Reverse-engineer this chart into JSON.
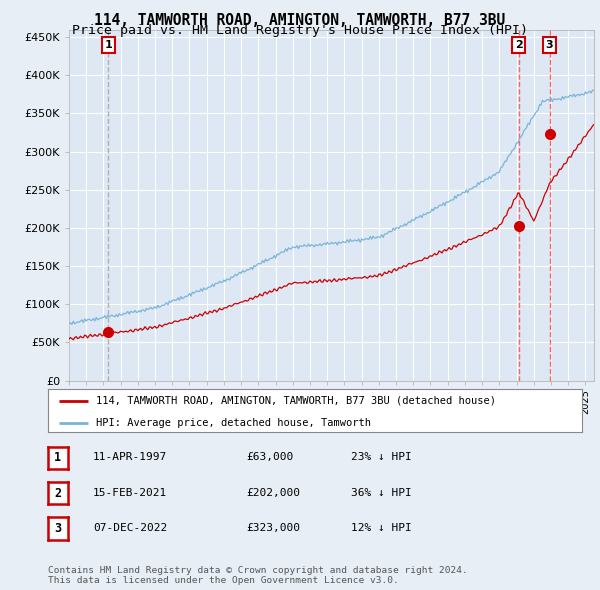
{
  "title": "114, TAMWORTH ROAD, AMINGTON, TAMWORTH, B77 3BU",
  "subtitle": "Price paid vs. HM Land Registry's House Price Index (HPI)",
  "ylabel_ticks": [
    "£0",
    "£50K",
    "£100K",
    "£150K",
    "£200K",
    "£250K",
    "£300K",
    "£350K",
    "£400K",
    "£450K"
  ],
  "ytick_vals": [
    0,
    50000,
    100000,
    150000,
    200000,
    250000,
    300000,
    350000,
    400000,
    450000
  ],
  "ylim": [
    0,
    460000
  ],
  "xlim_start": 1995.0,
  "xlim_end": 2025.5,
  "background_color": "#e8eef5",
  "plot_bg_color": "#dde8f4",
  "grid_color": "#ffffff",
  "sale_dates": [
    1997.28,
    2021.12,
    2022.92
  ],
  "sale_prices": [
    63000,
    202000,
    323000
  ],
  "sale_labels": [
    "1",
    "2",
    "3"
  ],
  "legend_entries": [
    "114, TAMWORTH ROAD, AMINGTON, TAMWORTH, B77 3BU (detached house)",
    "HPI: Average price, detached house, Tamworth"
  ],
  "table_rows": [
    [
      "1",
      "11-APR-1997",
      "£63,000",
      "23% ↓ HPI"
    ],
    [
      "2",
      "15-FEB-2021",
      "£202,000",
      "36% ↓ HPI"
    ],
    [
      "3",
      "07-DEC-2022",
      "£323,000",
      "12% ↓ HPI"
    ]
  ],
  "footer": "Contains HM Land Registry data © Crown copyright and database right 2024.\nThis data is licensed under the Open Government Licence v3.0.",
  "hpi_color": "#7ab4d8",
  "sale_line_color": "#cc0000",
  "sale_dot_color": "#cc0000",
  "vline1_color": "#aaaaaa",
  "vline23_color": "#ff5555",
  "title_fontsize": 10.5,
  "subtitle_fontsize": 9.5
}
